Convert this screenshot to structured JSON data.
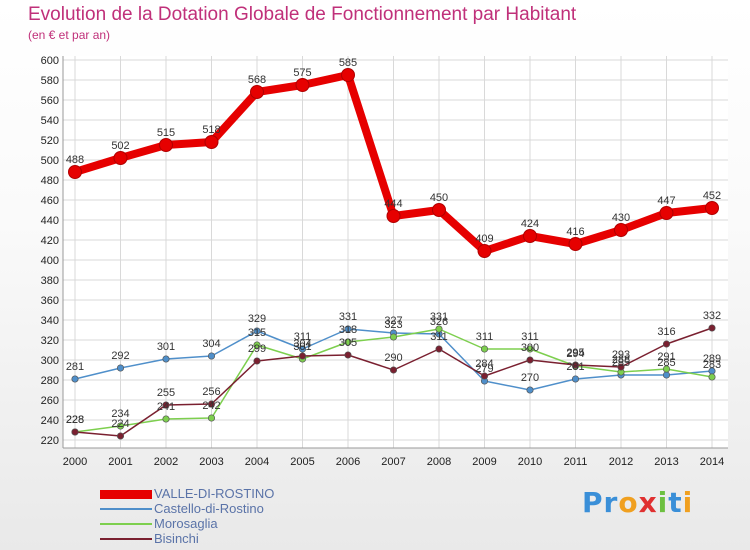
{
  "chart_data": {
    "type": "line",
    "title": "Evolution de la Dotation Globale de Fonctionnement par Habitant",
    "subtitle": "(en € et par an)",
    "x": [
      "2000",
      "2001",
      "2002",
      "2003",
      "2004",
      "2005",
      "2006",
      "2007",
      "2008",
      "2009",
      "2010",
      "2011",
      "2012",
      "2013",
      "2014"
    ],
    "ylim": [
      220,
      600
    ],
    "y_ticks": [
      220,
      240,
      260,
      280,
      300,
      320,
      340,
      360,
      380,
      400,
      420,
      440,
      460,
      480,
      500,
      520,
      540,
      560,
      580,
      600
    ],
    "grid": true,
    "legend_position": "bottom-left",
    "series": [
      {
        "name": "VALLE-DI-ROSTINO",
        "color": "#e60000",
        "values": [
          488,
          502,
          515,
          518,
          568,
          575,
          585,
          444,
          450,
          409,
          424,
          416,
          430,
          447,
          452
        ]
      },
      {
        "name": "Castello-di-Rostino",
        "color": "#4f8fca",
        "values": [
          281,
          292,
          301,
          304,
          329,
          311,
          331,
          327,
          326,
          279,
          270,
          281,
          285,
          285,
          289
        ]
      },
      {
        "name": "Morosaglia",
        "color": "#7dcf4e",
        "values": [
          228,
          234,
          241,
          242,
          315,
          301,
          318,
          323,
          331,
          311,
          311,
          294,
          288,
          291,
          283
        ]
      },
      {
        "name": "Bisinchi",
        "color": "#7a2030",
        "values": [
          228,
          224,
          255,
          256,
          299,
          304,
          305,
          290,
          311,
          284,
          300,
          295,
          293,
          316,
          332
        ]
      }
    ]
  },
  "logo": {
    "letters": [
      "P",
      "r",
      "o",
      "x",
      "i",
      "t",
      "i"
    ],
    "colors": [
      "#3a8fd8",
      "#3a8fd8",
      "#f0a020",
      "#e03030",
      "#6dc040",
      "#3a8fd8",
      "#f0a020"
    ]
  }
}
